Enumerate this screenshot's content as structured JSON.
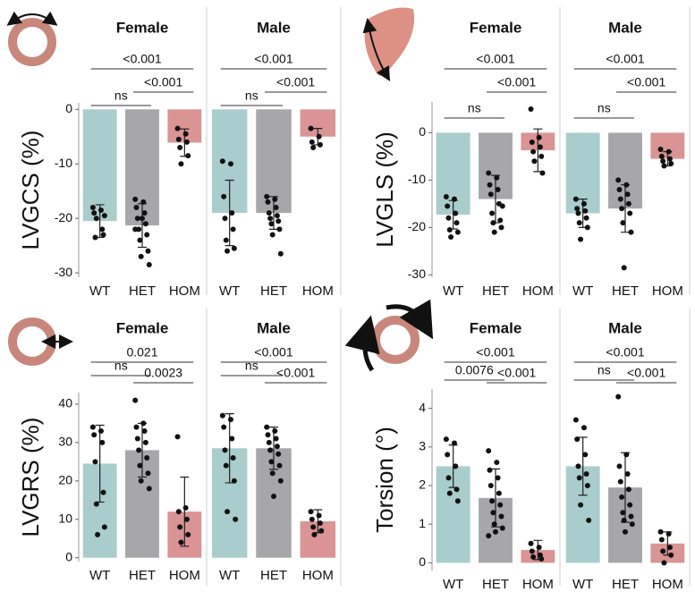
{
  "chart_data": [
    {
      "type": "bar",
      "title": "Female",
      "ylabel": "LVGCS (%)",
      "categories": [
        "WT",
        "HET",
        "HOM"
      ],
      "colors": [
        "#a8cdcc",
        "#a7a7a9",
        "#d99493"
      ],
      "values": [
        -20.5,
        -21.3,
        -6.1
      ],
      "errors": [
        3,
        4,
        2.5
      ],
      "points": [
        [
          -18,
          -18.5,
          -19,
          -22,
          -23.5,
          -23,
          -20,
          -19.5
        ],
        [
          -16.5,
          -17,
          -18,
          -19,
          -20,
          -21,
          -22,
          -23,
          -24,
          -26,
          -27,
          -28.5,
          -20,
          -22
        ],
        [
          -3.5,
          -4.5,
          -5.5,
          -6,
          -7,
          -8.5,
          -10
        ]
      ],
      "ylim": [
        -30.8,
        1.2
      ],
      "yticks": [
        0,
        -10,
        -20,
        -30
      ],
      "comparisons": [
        "<0.001",
        "<0.001",
        "ns"
      ]
    },
    {
      "type": "bar",
      "title": "Male",
      "categories": [
        "WT",
        "HET",
        "HOM"
      ],
      "colors": [
        "#a8cdcc",
        "#a7a7a9",
        "#d99493"
      ],
      "values": [
        -19,
        -19,
        -5
      ],
      "errors": [
        6,
        3,
        1.5
      ],
      "points": [
        [
          -9.5,
          -10,
          -16,
          -19,
          -20,
          -22,
          -24,
          -25.5,
          -26
        ],
        [
          -16,
          -16.5,
          -17,
          -18,
          -19,
          -19.5,
          -20,
          -20.5,
          -21,
          -22,
          -23,
          -26.5
        ],
        [
          -3.5,
          -5,
          -6,
          -6.5,
          -7
        ]
      ],
      "ylim": [
        -30.8,
        1.2
      ],
      "comparisons": [
        "<0.001",
        "<0.001",
        "ns"
      ]
    },
    {
      "type": "bar",
      "title": "Female",
      "ylabel": "LVGLS (%)",
      "categories": [
        "WT",
        "HET",
        "HOM"
      ],
      "colors": [
        "#a8cdcc",
        "#a7a7a9",
        "#d99493"
      ],
      "values": [
        -17.3,
        -14,
        -3.7
      ],
      "errors": [
        3,
        5,
        4.5
      ],
      "points": [
        [
          -13.5,
          -14,
          -15.5,
          -17,
          -18,
          -19,
          -20.5,
          -21,
          -22
        ],
        [
          -8.5,
          -9.5,
          -11,
          -12,
          -13,
          -15,
          -17,
          -18.5,
          -19,
          -20,
          -21,
          -15.5
        ],
        [
          5,
          -1,
          -2,
          -3,
          -4,
          -5,
          -6,
          -8.5
        ]
      ],
      "ylim": [
        -30.5,
        6.5
      ],
      "yticks": [
        0,
        -10,
        -20,
        -30
      ],
      "comparisons": [
        "<0.001",
        "<0.001",
        "ns"
      ]
    },
    {
      "type": "bar",
      "title": "Male",
      "categories": [
        "WT",
        "HET",
        "HOM"
      ],
      "colors": [
        "#a8cdcc",
        "#a7a7a9",
        "#d99493"
      ],
      "values": [
        -17,
        -16,
        -5.5
      ],
      "errors": [
        3,
        5,
        1.5
      ],
      "points": [
        [
          -14,
          -15,
          -16,
          -16.5,
          -17,
          -18,
          -19,
          -20,
          -22.5
        ],
        [
          -10,
          -11,
          -12,
          -13,
          -14,
          -15,
          -16,
          -17,
          -19,
          -21,
          -28.5
        ],
        [
          -3.5,
          -4,
          -5,
          -5.5,
          -6,
          -6.5,
          -7
        ]
      ],
      "ylim": [
        -30.5,
        6.5
      ],
      "comparisons": [
        "<0.001",
        "<0.001",
        "ns"
      ]
    },
    {
      "type": "bar",
      "title": "Female",
      "ylabel": "LVGRS (%)",
      "categories": [
        "WT",
        "HET",
        "HOM"
      ],
      "colors": [
        "#a8cdcc",
        "#a7a7a9",
        "#d99493"
      ],
      "values": [
        24.5,
        28,
        12
      ],
      "errors": [
        10,
        7,
        9
      ],
      "points": [
        [
          34,
          33,
          32,
          30,
          25,
          17,
          14,
          8,
          6
        ],
        [
          41,
          35,
          34,
          33,
          31,
          30,
          28,
          26,
          24,
          22,
          20,
          18
        ],
        [
          31.5,
          13,
          12,
          10,
          8,
          6,
          4
        ]
      ],
      "ylim": [
        -1,
        43
      ],
      "yticks": [
        0,
        10,
        20,
        30,
        40
      ],
      "comparisons": [
        "0.021",
        "0.0023",
        "ns"
      ]
    },
    {
      "type": "bar",
      "title": "Male",
      "categories": [
        "WT",
        "HET",
        "HOM"
      ],
      "colors": [
        "#a8cdcc",
        "#a7a7a9",
        "#d99493"
      ],
      "values": [
        28.5,
        28.5,
        9.5
      ],
      "errors": [
        9,
        5.5,
        3
      ],
      "points": [
        [
          37,
          36,
          34,
          31,
          28,
          26,
          24,
          20,
          12,
          10
        ],
        [
          34,
          33,
          32,
          31,
          30,
          29,
          28,
          27,
          25,
          24,
          22,
          20,
          16
        ],
        [
          12,
          11,
          10,
          9,
          8,
          7,
          6
        ]
      ],
      "ylim": [
        -1,
        43
      ],
      "comparisons": [
        "<0.001",
        "<0.001",
        "ns"
      ]
    },
    {
      "type": "bar",
      "title": "Female",
      "ylabel": "Torsion (°)",
      "categories": [
        "WT",
        "HET",
        "HOM"
      ],
      "colors": [
        "#a8cdcc",
        "#a7a7a9",
        "#d99493"
      ],
      "values": [
        2.5,
        1.68,
        0.33
      ],
      "errors": [
        0.55,
        0.75,
        0.25
      ],
      "points": [
        [
          3.2,
          3.1,
          2.8,
          2.5,
          2.2,
          1.9,
          1.8,
          1.6
        ],
        [
          2.9,
          2.6,
          2.4,
          2.2,
          2.0,
          1.8,
          1.6,
          1.5,
          1.3,
          1.2,
          1.0,
          0.9,
          0.8,
          0.7
        ],
        [
          0.5,
          0.4,
          0.3,
          0.2,
          0.15,
          0.1
        ]
      ],
      "ylim": [
        -0.2,
        4.5
      ],
      "yticks": [
        0,
        1,
        2,
        3,
        4
      ],
      "comparisons": [
        "<0.001",
        "<0.001",
        {
          "label": "0.0076",
          "color": "#e8000b"
        }
      ]
    },
    {
      "type": "bar",
      "title": "Male",
      "categories": [
        "WT",
        "HET",
        "HOM"
      ],
      "colors": [
        "#a8cdcc",
        "#a7a7a9",
        "#d99493"
      ],
      "values": [
        2.5,
        1.95,
        0.5
      ],
      "errors": [
        0.75,
        0.9,
        0.3
      ],
      "points": [
        [
          3.7,
          3.5,
          3.2,
          2.8,
          2.5,
          2.3,
          2.2,
          2.0,
          1.5,
          1.1
        ],
        [
          4.3,
          2.8,
          2.5,
          2.3,
          2.1,
          1.9,
          1.7,
          1.5,
          1.3,
          1.2,
          1.1,
          1.0,
          0.8
        ],
        [
          0.8,
          0.75,
          0.6,
          0.4,
          0.3,
          0.2,
          0.0
        ]
      ],
      "ylim": [
        -0.2,
        4.5
      ],
      "comparisons": [
        "<0.001",
        "<0.001",
        "ns"
      ]
    }
  ]
}
